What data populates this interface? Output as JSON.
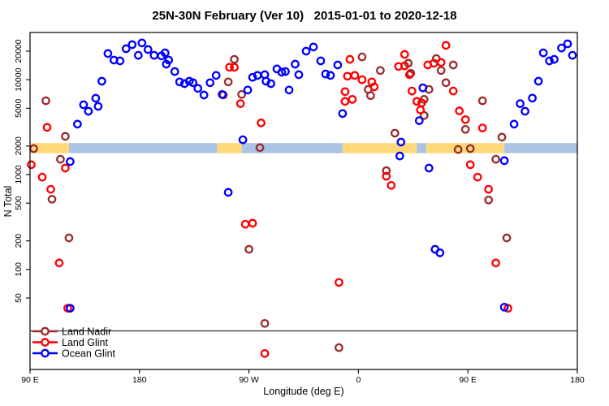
{
  "chart_data": {
    "type": "scatter",
    "title": "25N-30N February (Ver 10)   2015-01-01 to 2020-12-18",
    "xlabel": "Longitude (deg E)",
    "ylabel": "N Total",
    "x_axis": {
      "min": 90,
      "max": 540,
      "ticks": [
        {
          "value": 90,
          "label": "90 E"
        },
        {
          "value": 180,
          "label": "180"
        },
        {
          "value": 270,
          "label": "90 W"
        },
        {
          "value": 360,
          "label": "0"
        },
        {
          "value": 450,
          "label": "90 E"
        },
        {
          "value": 540,
          "label": "180"
        }
      ]
    },
    "y_axis": {
      "scale": "log",
      "ticks": [
        50,
        100,
        200,
        500,
        1000,
        2000,
        5000,
        10000,
        20000
      ],
      "top_value": 31000,
      "bottom_value": 9
    },
    "threshold_line": {
      "value": 22.5,
      "color": "#333333"
    },
    "map_band": {
      "top_value": 2150,
      "bottom_value": 1680,
      "ocean_color": "#ABC4E6",
      "land_color": "#FFD878",
      "segments": [
        {
          "type": "land",
          "from": 90,
          "to": 122
        },
        {
          "type": "ocean",
          "from": 122,
          "to": 244
        },
        {
          "type": "land",
          "from": 244,
          "to": 264
        },
        {
          "type": "ocean",
          "from": 264,
          "to": 347
        },
        {
          "type": "land",
          "from": 347,
          "to": 408
        },
        {
          "type": "ocean",
          "from": 408,
          "to": 416
        },
        {
          "type": "land",
          "from": 416,
          "to": 480
        },
        {
          "type": "ocean",
          "from": 480,
          "to": 540
        }
      ]
    },
    "series": [
      {
        "name": "Land Nadir",
        "color": "#9C2C2C",
        "points": [
          [
            103,
            6000
          ],
          [
            119,
            2530
          ],
          [
            93,
            1880
          ],
          [
            115,
            1450
          ],
          [
            108,
            550
          ],
          [
            122,
            215
          ],
          [
            258,
            16400
          ],
          [
            253,
            9500
          ],
          [
            249,
            6900
          ],
          [
            264,
            7000
          ],
          [
            279,
            1920
          ],
          [
            270,
            163
          ],
          [
            283,
            27
          ],
          [
            363,
            17400
          ],
          [
            378,
            12500
          ],
          [
            368,
            7900
          ],
          [
            370,
            6800
          ],
          [
            401,
            14900
          ],
          [
            403,
            11700
          ],
          [
            424,
            16700
          ],
          [
            428,
            12500
          ],
          [
            432,
            9300
          ],
          [
            438,
            14300
          ],
          [
            462,
            6000
          ],
          [
            418,
            7900
          ],
          [
            414,
            6200
          ],
          [
            414,
            4200
          ],
          [
            390,
            2730
          ],
          [
            383,
            1100
          ],
          [
            448,
            3000
          ],
          [
            478,
            2480
          ],
          [
            442,
            1840
          ],
          [
            452,
            1880
          ],
          [
            473,
            1450
          ],
          [
            467,
            540
          ],
          [
            482,
            215
          ],
          [
            344,
            15
          ]
        ]
      },
      {
        "name": "Land Glint",
        "color": "#FF0000",
        "points": [
          [
            104,
            3140
          ],
          [
            91,
            1270
          ],
          [
            100,
            940
          ],
          [
            107,
            700
          ],
          [
            119,
            1170
          ],
          [
            114,
            117
          ],
          [
            121,
            39
          ],
          [
            267,
            300
          ],
          [
            273,
            307
          ],
          [
            283,
            13
          ],
          [
            254,
            13500
          ],
          [
            258,
            13500
          ],
          [
            263,
            5600
          ],
          [
            280,
            3500
          ],
          [
            353,
            16400
          ],
          [
            398,
            18500
          ],
          [
            393,
            13800
          ],
          [
            398,
            14000
          ],
          [
            351,
            10900
          ],
          [
            357,
            11100
          ],
          [
            363,
            10000
          ],
          [
            371,
            9500
          ],
          [
            373,
            8400
          ],
          [
            349,
            7500
          ],
          [
            355,
            6200
          ],
          [
            349,
            5900
          ],
          [
            383,
            960
          ],
          [
            387,
            770
          ],
          [
            344,
            73
          ],
          [
            402,
            11300
          ],
          [
            417,
            14300
          ],
          [
            422,
            14900
          ],
          [
            428,
            15200
          ],
          [
            432,
            23000
          ],
          [
            404,
            7600
          ],
          [
            408,
            5900
          ],
          [
            412,
            5700
          ],
          [
            411,
            4800
          ],
          [
            438,
            7600
          ],
          [
            443,
            4700
          ],
          [
            448,
            3800
          ],
          [
            462,
            3100
          ],
          [
            452,
            1270
          ],
          [
            458,
            940
          ],
          [
            467,
            700
          ],
          [
            473,
            117
          ],
          [
            483,
            39
          ]
        ]
      },
      {
        "name": "Ocean Glint",
        "color": "#0000FF",
        "points": [
          [
            154,
            18900
          ],
          [
            159,
            16100
          ],
          [
            164,
            15800
          ],
          [
            169,
            21200
          ],
          [
            174,
            23400
          ],
          [
            179,
            18100
          ],
          [
            182,
            24400
          ],
          [
            187,
            20800
          ],
          [
            192,
            18100
          ],
          [
            198,
            17800
          ],
          [
            202,
            14600
          ],
          [
            149,
            9650
          ],
          [
            144,
            6380
          ],
          [
            146,
            5240
          ],
          [
            134,
            5450
          ],
          [
            138,
            4650
          ],
          [
            129,
            3400
          ],
          [
            123,
            1370
          ],
          [
            123,
            39
          ],
          [
            201,
            19200
          ],
          [
            204,
            16100
          ],
          [
            209,
            12200
          ],
          [
            213,
            9500
          ],
          [
            217,
            9100
          ],
          [
            221,
            9650
          ],
          [
            224,
            9300
          ],
          [
            228,
            8100
          ],
          [
            233,
            6900
          ],
          [
            238,
            9300
          ],
          [
            243,
            11100
          ],
          [
            248,
            7000
          ],
          [
            269,
            7800
          ],
          [
            273,
            10600
          ],
          [
            277,
            11100
          ],
          [
            283,
            11300
          ],
          [
            284,
            9650
          ],
          [
            288,
            9100
          ],
          [
            293,
            13000
          ],
          [
            297,
            12000
          ],
          [
            300,
            12200
          ],
          [
            303,
            7800
          ],
          [
            308,
            14600
          ],
          [
            311,
            11300
          ],
          [
            317,
            20000
          ],
          [
            265,
            2330
          ],
          [
            253,
            650
          ],
          [
            323,
            22100
          ],
          [
            329,
            15800
          ],
          [
            343,
            14300
          ],
          [
            333,
            11500
          ],
          [
            337,
            11100
          ],
          [
            347,
            4400
          ],
          [
            413,
            8200
          ],
          [
            410,
            3700
          ],
          [
            395,
            2200
          ],
          [
            394,
            1570
          ],
          [
            418,
            1170
          ],
          [
            512,
            19200
          ],
          [
            517,
            15800
          ],
          [
            521,
            16400
          ],
          [
            527,
            21600
          ],
          [
            532,
            23900
          ],
          [
            536,
            18100
          ],
          [
            508,
            9650
          ],
          [
            503,
            6400
          ],
          [
            493,
            5600
          ],
          [
            497,
            4650
          ],
          [
            488,
            3400
          ],
          [
            480,
            1400
          ],
          [
            480,
            40
          ],
          [
            423,
            163
          ],
          [
            427,
            150
          ]
        ]
      }
    ],
    "legend_position": "bottom-left"
  }
}
